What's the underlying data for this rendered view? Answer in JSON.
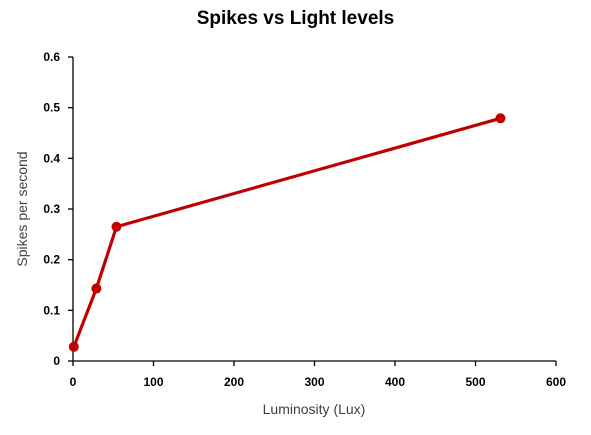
{
  "chart_data": {
    "type": "line",
    "title": "Spikes vs Light levels",
    "xlabel": "Luminosity (Lux)",
    "ylabel": "Spikes per second",
    "xlim": [
      0,
      600
    ],
    "ylim": [
      0,
      0.6
    ],
    "xticks": [
      "0",
      "100",
      "200",
      "300",
      "400",
      "500",
      "600"
    ],
    "yticks": [
      "0",
      "0.1",
      "0.2",
      "0.3",
      "0.4",
      "0.5",
      "0.6"
    ],
    "grid": false,
    "legend": "none",
    "series": [
      {
        "color": "#c00000",
        "points": [
          {
            "x": 1,
            "y": 0.028
          },
          {
            "x": 29,
            "y": 0.143
          },
          {
            "x": 54,
            "y": 0.265
          },
          {
            "x": 531,
            "y": 0.479
          }
        ]
      }
    ]
  }
}
